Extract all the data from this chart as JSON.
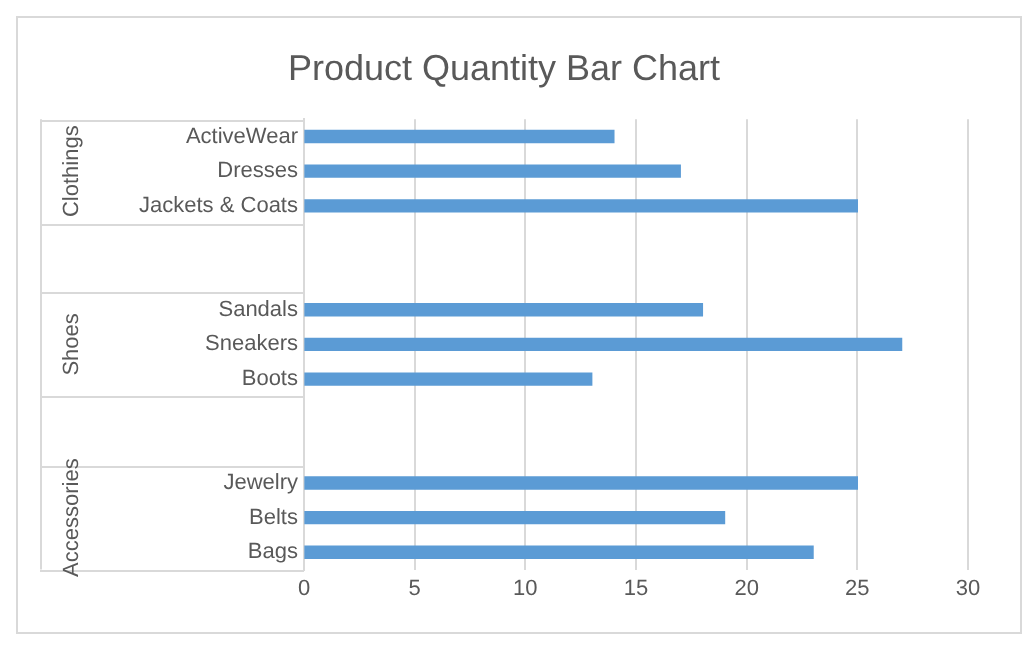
{
  "chart_data": {
    "type": "bar",
    "orientation": "horizontal",
    "title": "Product Quantity Bar Chart",
    "categories": [
      "ActiveWear",
      "Dresses",
      "Jackets & Coats",
      null,
      null,
      "Sandals",
      "Sneakers",
      "Boots",
      null,
      null,
      "Jewelry",
      "Belts",
      "Bags"
    ],
    "values": [
      14,
      17,
      25,
      null,
      null,
      18,
      27,
      13,
      null,
      null,
      25,
      19,
      23
    ],
    "color": "#5b9bd5",
    "annotations": [
      "Clothings",
      "Shoes",
      "Accessories"
    ],
    "xlim": [
      0,
      30
    ],
    "xticks": [
      0,
      5,
      10,
      15,
      20,
      25,
      30
    ],
    "grid": "x",
    "legend": false
  }
}
